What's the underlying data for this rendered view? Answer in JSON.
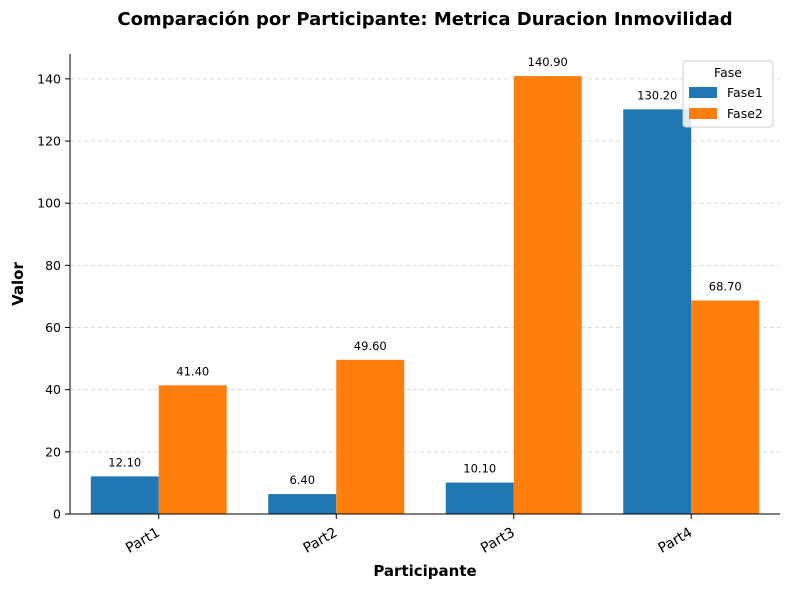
{
  "chart_data": {
    "type": "bar",
    "title": "Comparación por Participante: Metrica Duracion Inmovilidad",
    "xlabel": "Participante",
    "ylabel": "Valor",
    "categories": [
      "Part1",
      "Part2",
      "Part3",
      "Part4"
    ],
    "series": [
      {
        "name": "Fase1",
        "color": "#1f77b4",
        "values": [
          12.1,
          6.4,
          10.1,
          130.2
        ],
        "labels": [
          "12.10",
          "6.40",
          "10.10",
          "130.20"
        ]
      },
      {
        "name": "Fase2",
        "color": "#ff7f0e",
        "values": [
          41.4,
          49.6,
          140.9,
          68.7
        ],
        "labels": [
          "41.40",
          "49.60",
          "140.90",
          "68.70"
        ]
      }
    ],
    "ylim": [
      0,
      148
    ],
    "yticks": [
      0,
      20,
      40,
      60,
      80,
      100,
      120,
      140
    ],
    "grid": "y, dashed",
    "legend": {
      "title": "Fase",
      "placement": "top-right"
    }
  }
}
